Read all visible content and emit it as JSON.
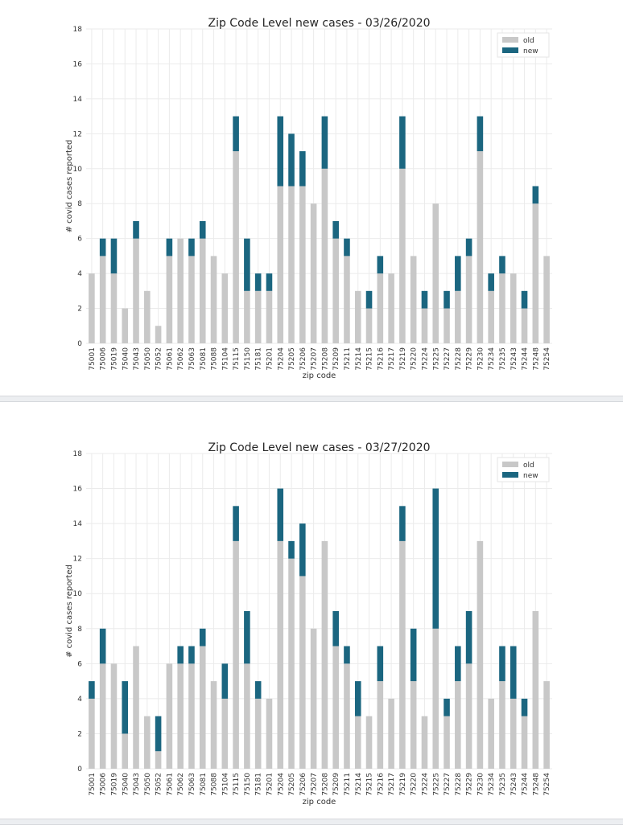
{
  "colors": {
    "old": "#c8c8c8",
    "new": "#1b6680"
  },
  "chart_data": [
    {
      "type": "bar",
      "stacked": true,
      "title": "Zip Code Level new cases - 03/26/2020",
      "xlabel": "zip code",
      "ylabel": "# covid cases reported",
      "ylim": [
        0,
        18
      ],
      "yticks": [
        "0",
        "2",
        "4",
        "6",
        "8",
        "10",
        "12",
        "14",
        "16",
        "18"
      ],
      "grid": true,
      "legend_position": "top-right",
      "categories": [
        "75001",
        "75006",
        "75019",
        "75040",
        "75043",
        "75050",
        "75052",
        "75061",
        "75062",
        "75063",
        "75081",
        "75088",
        "75104",
        "75115",
        "75150",
        "75181",
        "75201",
        "75204",
        "75205",
        "75206",
        "75207",
        "75208",
        "75209",
        "75211",
        "75214",
        "75215",
        "75216",
        "75217",
        "75219",
        "75220",
        "75224",
        "75225",
        "75227",
        "75228",
        "75229",
        "75230",
        "75234",
        "75235",
        "75243",
        "75244",
        "75248",
        "75254"
      ],
      "series": [
        {
          "name": "old",
          "values": [
            4,
            5,
            4,
            2,
            6,
            3,
            1,
            5,
            6,
            5,
            6,
            5,
            4,
            11,
            3,
            3,
            3,
            9,
            9,
            9,
            8,
            10,
            6,
            5,
            3,
            2,
            4,
            4,
            10,
            5,
            2,
            8,
            2,
            3,
            5,
            11,
            3,
            4,
            4,
            2,
            8,
            5
          ]
        },
        {
          "name": "new",
          "values": [
            0,
            1,
            2,
            0,
            1,
            0,
            0,
            1,
            0,
            1,
            1,
            0,
            0,
            2,
            3,
            1,
            1,
            4,
            3,
            2,
            0,
            3,
            1,
            1,
            0,
            1,
            1,
            0,
            3,
            0,
            1,
            0,
            1,
            2,
            1,
            2,
            1,
            1,
            0,
            1,
            1,
            0
          ]
        }
      ]
    },
    {
      "type": "bar",
      "stacked": true,
      "title": "Zip Code Level new cases - 03/27/2020",
      "xlabel": "zip code",
      "ylabel": "# covid cases reported",
      "ylim": [
        0,
        18
      ],
      "yticks": [
        "0",
        "2",
        "4",
        "6",
        "8",
        "10",
        "12",
        "14",
        "16",
        "18"
      ],
      "grid": true,
      "legend_position": "top-right",
      "categories": [
        "75001",
        "75006",
        "75019",
        "75040",
        "75043",
        "75050",
        "75052",
        "75061",
        "75062",
        "75063",
        "75081",
        "75088",
        "75104",
        "75115",
        "75150",
        "75181",
        "75201",
        "75204",
        "75205",
        "75206",
        "75207",
        "75208",
        "75209",
        "75211",
        "75214",
        "75215",
        "75216",
        "75217",
        "75219",
        "75220",
        "75224",
        "75225",
        "75227",
        "75228",
        "75229",
        "75230",
        "75234",
        "75235",
        "75243",
        "75244",
        "75248",
        "75254"
      ],
      "series": [
        {
          "name": "old",
          "values": [
            4,
            6,
            6,
            2,
            7,
            3,
            1,
            6,
            6,
            6,
            7,
            5,
            4,
            13,
            6,
            4,
            4,
            13,
            12,
            11,
            8,
            13,
            7,
            6,
            3,
            3,
            5,
            4,
            13,
            5,
            3,
            8,
            3,
            5,
            6,
            13,
            4,
            5,
            4,
            3,
            9,
            5
          ]
        },
        {
          "name": "new",
          "values": [
            1,
            2,
            0,
            3,
            0,
            0,
            2,
            0,
            1,
            1,
            1,
            0,
            2,
            2,
            3,
            1,
            0,
            3,
            1,
            3,
            0,
            0,
            2,
            1,
            2,
            0,
            2,
            0,
            2,
            3,
            0,
            8,
            1,
            2,
            3,
            0,
            0,
            2,
            3,
            1,
            0,
            0
          ]
        }
      ]
    }
  ]
}
